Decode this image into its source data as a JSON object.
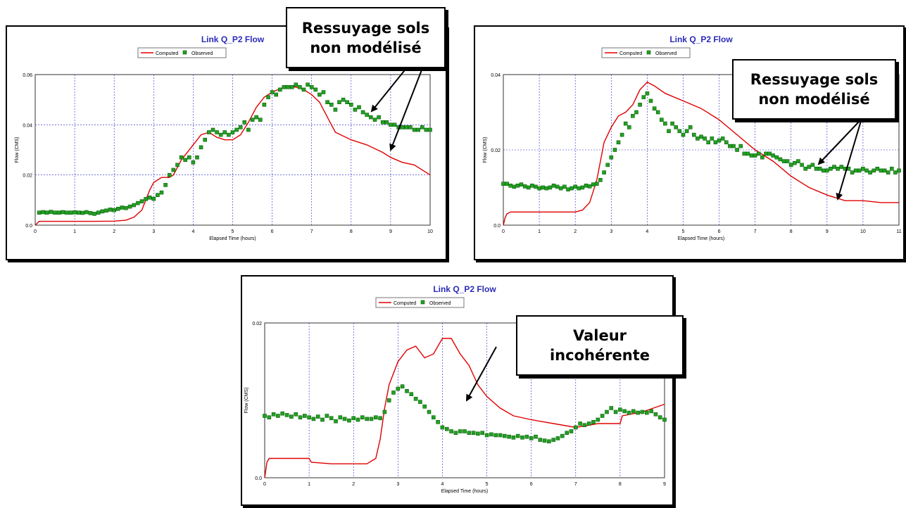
{
  "colors": {
    "computed": "#e00000",
    "observed": "#22a022",
    "observed_edge": "#0b5f0b",
    "grid": "#2222cc",
    "title": "#2a2ab8"
  },
  "callouts": [
    {
      "text": "Ressuyage sols\nnon modélisé"
    },
    {
      "text": "Ressuyage sols\nnon modélisé"
    },
    {
      "text": "Valeur\nincohérente"
    }
  ],
  "chart_data": [
    {
      "type": "line",
      "title": "Link Q_P2 Flow",
      "xlabel": "Elapsed Time (hours)",
      "ylabel": "Flow (CMS)",
      "legend": [
        "Computed",
        "Observed"
      ],
      "legend_position": "top-center",
      "grid": true,
      "xlim": [
        0,
        10
      ],
      "ylim": [
        0,
        0.06
      ],
      "xticks": [
        0,
        1,
        2,
        3,
        4,
        5,
        6,
        7,
        8,
        9,
        10
      ],
      "yticks": [
        0.0,
        0.02,
        0.04,
        0.06
      ],
      "ytick_labels": [
        "0.0",
        "0.02",
        "0.04",
        "0.06"
      ],
      "series": [
        {
          "name": "Computed",
          "style": "line",
          "x": [
            0,
            0.1,
            0.2,
            0.5,
            1,
            1.5,
            2,
            2.3,
            2.5,
            2.7,
            2.8,
            2.9,
            3.0,
            3.2,
            3.4,
            3.5,
            3.7,
            4.0,
            4.2,
            4.4,
            4.6,
            4.8,
            5.0,
            5.2,
            5.4,
            5.6,
            5.8,
            6.0,
            6.3,
            6.6,
            6.8,
            7.0,
            7.2,
            7.4,
            7.6,
            8.0,
            8.4,
            8.8,
            9.0,
            9.3,
            9.6,
            10.0
          ],
          "y": [
            0,
            0.0015,
            0.0015,
            0.0015,
            0.0015,
            0.0015,
            0.0016,
            0.002,
            0.0032,
            0.006,
            0.01,
            0.014,
            0.017,
            0.019,
            0.019,
            0.02,
            0.026,
            0.032,
            0.036,
            0.037,
            0.035,
            0.034,
            0.034,
            0.036,
            0.041,
            0.047,
            0.051,
            0.053,
            0.055,
            0.055,
            0.054,
            0.052,
            0.049,
            0.043,
            0.037,
            0.034,
            0.032,
            0.029,
            0.027,
            0.025,
            0.024,
            0.02
          ]
        },
        {
          "name": "Observed",
          "style": "markers",
          "x": [
            0.1,
            0.2,
            0.3,
            0.4,
            0.5,
            0.6,
            0.7,
            0.8,
            0.9,
            1.0,
            1.1,
            1.2,
            1.3,
            1.4,
            1.5,
            1.6,
            1.7,
            1.8,
            1.9,
            2.0,
            2.1,
            2.2,
            2.3,
            2.4,
            2.5,
            2.6,
            2.7,
            2.8,
            2.9,
            3.0,
            3.1,
            3.2,
            3.3,
            3.4,
            3.5,
            3.6,
            3.7,
            3.8,
            3.9,
            4.0,
            4.1,
            4.2,
            4.3,
            4.4,
            4.5,
            4.6,
            4.7,
            4.8,
            4.9,
            5.0,
            5.1,
            5.2,
            5.3,
            5.4,
            5.5,
            5.6,
            5.7,
            5.8,
            5.9,
            6.0,
            6.1,
            6.2,
            6.3,
            6.4,
            6.5,
            6.6,
            6.7,
            6.8,
            6.9,
            7.0,
            7.1,
            7.2,
            7.3,
            7.4,
            7.5,
            7.6,
            7.7,
            7.8,
            7.9,
            8.0,
            8.1,
            8.2,
            8.3,
            8.4,
            8.5,
            8.6,
            8.7,
            8.8,
            8.9,
            9.0,
            9.1,
            9.2,
            9.3,
            9.4,
            9.5,
            9.6,
            9.7,
            9.8,
            9.9,
            10.0
          ],
          "y": [
            0.005,
            0.0052,
            0.005,
            0.0053,
            0.005,
            0.005,
            0.0052,
            0.005,
            0.005,
            0.0051,
            0.005,
            0.0049,
            0.0052,
            0.0048,
            0.0045,
            0.005,
            0.0055,
            0.0058,
            0.0062,
            0.006,
            0.0065,
            0.007,
            0.0068,
            0.0074,
            0.008,
            0.0088,
            0.0095,
            0.0104,
            0.011,
            0.0105,
            0.012,
            0.013,
            0.016,
            0.02,
            0.022,
            0.024,
            0.027,
            0.026,
            0.027,
            0.025,
            0.027,
            0.031,
            0.034,
            0.037,
            0.038,
            0.037,
            0.036,
            0.037,
            0.036,
            0.037,
            0.038,
            0.039,
            0.041,
            0.038,
            0.042,
            0.043,
            0.042,
            0.048,
            0.051,
            0.053,
            0.052,
            0.054,
            0.055,
            0.055,
            0.055,
            0.056,
            0.055,
            0.054,
            0.056,
            0.055,
            0.054,
            0.052,
            0.053,
            0.049,
            0.048,
            0.046,
            0.049,
            0.05,
            0.049,
            0.048,
            0.046,
            0.047,
            0.045,
            0.044,
            0.043,
            0.042,
            0.043,
            0.041,
            0.041,
            0.04,
            0.04,
            0.039,
            0.039,
            0.039,
            0.039,
            0.038,
            0.038,
            0.039,
            0.038,
            0.038
          ]
        }
      ]
    },
    {
      "type": "line",
      "title": "Link Q_P2 Flow",
      "xlabel": "Elapsed Time (hours)",
      "ylabel": "Flow (CMS)",
      "legend": [
        "Computed",
        "Observed"
      ],
      "legend_position": "top-center",
      "grid": true,
      "xlim": [
        0,
        11
      ],
      "ylim": [
        0,
        0.04
      ],
      "xticks": [
        0,
        1,
        2,
        3,
        4,
        5,
        6,
        7,
        8,
        9,
        10,
        11
      ],
      "yticks": [
        0.0,
        0.02,
        0.04
      ],
      "ytick_labels": [
        "0.0",
        "0.02",
        "0.04"
      ],
      "series": [
        {
          "name": "Computed",
          "style": "line",
          "x": [
            0,
            0.05,
            0.1,
            0.2,
            0.5,
            1,
            1.5,
            2,
            2.2,
            2.4,
            2.6,
            2.8,
            3.0,
            3.2,
            3.4,
            3.6,
            3.8,
            4.0,
            4.2,
            4.5,
            5.0,
            5.5,
            6.0,
            6.5,
            7.0,
            7.5,
            8.0,
            8.5,
            9.0,
            9.5,
            10.0,
            10.5,
            11.0
          ],
          "y": [
            0,
            0.002,
            0.003,
            0.0035,
            0.0035,
            0.0035,
            0.0035,
            0.0035,
            0.004,
            0.006,
            0.012,
            0.022,
            0.026,
            0.029,
            0.03,
            0.032,
            0.036,
            0.038,
            0.037,
            0.035,
            0.033,
            0.031,
            0.028,
            0.024,
            0.02,
            0.017,
            0.013,
            0.01,
            0.008,
            0.0065,
            0.0065,
            0.006,
            0.006
          ]
        },
        {
          "name": "Observed",
          "style": "markers",
          "x": [
            0.0,
            0.1,
            0.2,
            0.3,
            0.4,
            0.5,
            0.6,
            0.7,
            0.8,
            0.9,
            1.0,
            1.1,
            1.2,
            1.3,
            1.4,
            1.5,
            1.6,
            1.7,
            1.8,
            1.9,
            2.0,
            2.1,
            2.2,
            2.3,
            2.4,
            2.5,
            2.6,
            2.7,
            2.8,
            2.9,
            3.0,
            3.1,
            3.2,
            3.3,
            3.4,
            3.5,
            3.6,
            3.7,
            3.8,
            3.9,
            4.0,
            4.1,
            4.2,
            4.3,
            4.4,
            4.5,
            4.6,
            4.7,
            4.8,
            4.9,
            5.0,
            5.1,
            5.2,
            5.3,
            5.4,
            5.5,
            5.6,
            5.7,
            5.8,
            5.9,
            6.0,
            6.1,
            6.2,
            6.3,
            6.4,
            6.5,
            6.6,
            6.7,
            6.8,
            6.9,
            7.0,
            7.1,
            7.2,
            7.3,
            7.4,
            7.5,
            7.6,
            7.7,
            7.8,
            7.9,
            8.0,
            8.1,
            8.2,
            8.3,
            8.4,
            8.5,
            8.6,
            8.7,
            8.8,
            8.9,
            9.0,
            9.1,
            9.2,
            9.3,
            9.4,
            9.5,
            9.6,
            9.7,
            9.8,
            9.9,
            10.0,
            10.1,
            10.2,
            10.3,
            10.4,
            10.5,
            10.6,
            10.7,
            10.8,
            10.9,
            11.0
          ],
          "y": [
            0.011,
            0.011,
            0.0105,
            0.0102,
            0.0105,
            0.0108,
            0.0103,
            0.01,
            0.0105,
            0.0102,
            0.0098,
            0.01,
            0.0098,
            0.01,
            0.0105,
            0.0102,
            0.0098,
            0.0102,
            0.0095,
            0.0098,
            0.0102,
            0.0098,
            0.01,
            0.0105,
            0.0103,
            0.0108,
            0.011,
            0.012,
            0.014,
            0.016,
            0.018,
            0.02,
            0.022,
            0.024,
            0.027,
            0.026,
            0.029,
            0.03,
            0.032,
            0.034,
            0.035,
            0.033,
            0.031,
            0.03,
            0.028,
            0.027,
            0.025,
            0.027,
            0.026,
            0.025,
            0.024,
            0.025,
            0.026,
            0.024,
            0.023,
            0.0235,
            0.023,
            0.022,
            0.023,
            0.022,
            0.0225,
            0.023,
            0.022,
            0.021,
            0.021,
            0.02,
            0.021,
            0.019,
            0.019,
            0.0185,
            0.0185,
            0.019,
            0.018,
            0.019,
            0.019,
            0.0185,
            0.018,
            0.0175,
            0.017,
            0.017,
            0.016,
            0.0165,
            0.017,
            0.016,
            0.015,
            0.0155,
            0.016,
            0.015,
            0.015,
            0.0145,
            0.0145,
            0.015,
            0.0155,
            0.015,
            0.0155,
            0.015,
            0.015,
            0.014,
            0.0145,
            0.0145,
            0.015,
            0.0145,
            0.014,
            0.0145,
            0.015,
            0.0145,
            0.0145,
            0.014,
            0.015,
            0.014,
            0.0145
          ]
        }
      ]
    },
    {
      "type": "line",
      "title": "Link Q_P2 Flow",
      "xlabel": "Elapsed Time (hours)",
      "ylabel": "Flow (CMS)",
      "legend": [
        "Computed",
        "Observed"
      ],
      "legend_position": "top-center",
      "grid": true,
      "xlim": [
        0,
        9
      ],
      "ylim": [
        0,
        0.02
      ],
      "xticks": [
        0,
        1,
        2,
        3,
        4,
        5,
        6,
        7,
        8,
        9
      ],
      "yticks": [
        0.0,
        0.02
      ],
      "ytick_labels": [
        "0.0",
        "0.02"
      ],
      "series": [
        {
          "name": "Computed",
          "style": "line",
          "x": [
            0,
            0.05,
            0.1,
            0.5,
            1.0,
            1.05,
            1.5,
            2.0,
            2.3,
            2.5,
            2.6,
            2.7,
            2.8,
            3.0,
            3.2,
            3.4,
            3.6,
            3.8,
            4.0,
            4.2,
            4.4,
            4.6,
            4.8,
            5.0,
            5.3,
            5.6,
            6.0,
            6.5,
            7.0,
            7.5,
            8.0,
            8.05,
            8.5,
            9.0
          ],
          "y": [
            0,
            0.002,
            0.0025,
            0.0025,
            0.0025,
            0.002,
            0.0018,
            0.0018,
            0.0018,
            0.0025,
            0.005,
            0.009,
            0.012,
            0.015,
            0.0165,
            0.017,
            0.0155,
            0.016,
            0.018,
            0.018,
            0.016,
            0.0145,
            0.012,
            0.0105,
            0.009,
            0.008,
            0.0075,
            0.007,
            0.0065,
            0.007,
            0.007,
            0.008,
            0.0085,
            0.0095
          ]
        },
        {
          "name": "Observed",
          "style": "markers",
          "x": [
            0.0,
            0.1,
            0.2,
            0.3,
            0.4,
            0.5,
            0.6,
            0.7,
            0.8,
            0.9,
            1.0,
            1.1,
            1.2,
            1.3,
            1.4,
            1.5,
            1.6,
            1.7,
            1.8,
            1.9,
            2.0,
            2.1,
            2.2,
            2.3,
            2.4,
            2.5,
            2.6,
            2.7,
            2.8,
            2.9,
            3.0,
            3.1,
            3.2,
            3.3,
            3.4,
            3.5,
            3.6,
            3.7,
            3.8,
            3.9,
            4.0,
            4.1,
            4.2,
            4.3,
            4.4,
            4.5,
            4.6,
            4.7,
            4.8,
            4.9,
            5.0,
            5.1,
            5.2,
            5.3,
            5.4,
            5.5,
            5.6,
            5.7,
            5.8,
            5.9,
            6.0,
            6.1,
            6.2,
            6.3,
            6.4,
            6.5,
            6.6,
            6.7,
            6.8,
            6.9,
            7.0,
            7.1,
            7.2,
            7.3,
            7.4,
            7.5,
            7.6,
            7.7,
            7.8,
            7.9,
            8.0,
            8.1,
            8.2,
            8.3,
            8.4,
            8.5,
            8.6,
            8.7,
            8.8,
            8.9,
            9.0
          ],
          "y": [
            0.008,
            0.0078,
            0.0082,
            0.008,
            0.0083,
            0.0081,
            0.0079,
            0.0082,
            0.0078,
            0.008,
            0.0078,
            0.0076,
            0.0079,
            0.0075,
            0.008,
            0.0077,
            0.0073,
            0.0078,
            0.0076,
            0.0074,
            0.0077,
            0.0075,
            0.0078,
            0.0076,
            0.0076,
            0.0078,
            0.0077,
            0.0085,
            0.01,
            0.011,
            0.0115,
            0.0118,
            0.0112,
            0.0108,
            0.0102,
            0.0098,
            0.0092,
            0.0085,
            0.0078,
            0.0072,
            0.0065,
            0.0063,
            0.006,
            0.0058,
            0.006,
            0.006,
            0.0058,
            0.0058,
            0.0057,
            0.0058,
            0.0055,
            0.0056,
            0.0055,
            0.0055,
            0.0054,
            0.0053,
            0.0052,
            0.0054,
            0.0052,
            0.0053,
            0.0051,
            0.0053,
            0.0049,
            0.0048,
            0.0047,
            0.0049,
            0.0051,
            0.0054,
            0.0058,
            0.006,
            0.0065,
            0.007,
            0.0068,
            0.007,
            0.0072,
            0.0075,
            0.008,
            0.0085,
            0.009,
            0.0085,
            0.0088,
            0.0086,
            0.0084,
            0.0086,
            0.0084,
            0.0085,
            0.0084,
            0.0086,
            0.0082,
            0.0078,
            0.0075
          ]
        }
      ]
    }
  ]
}
